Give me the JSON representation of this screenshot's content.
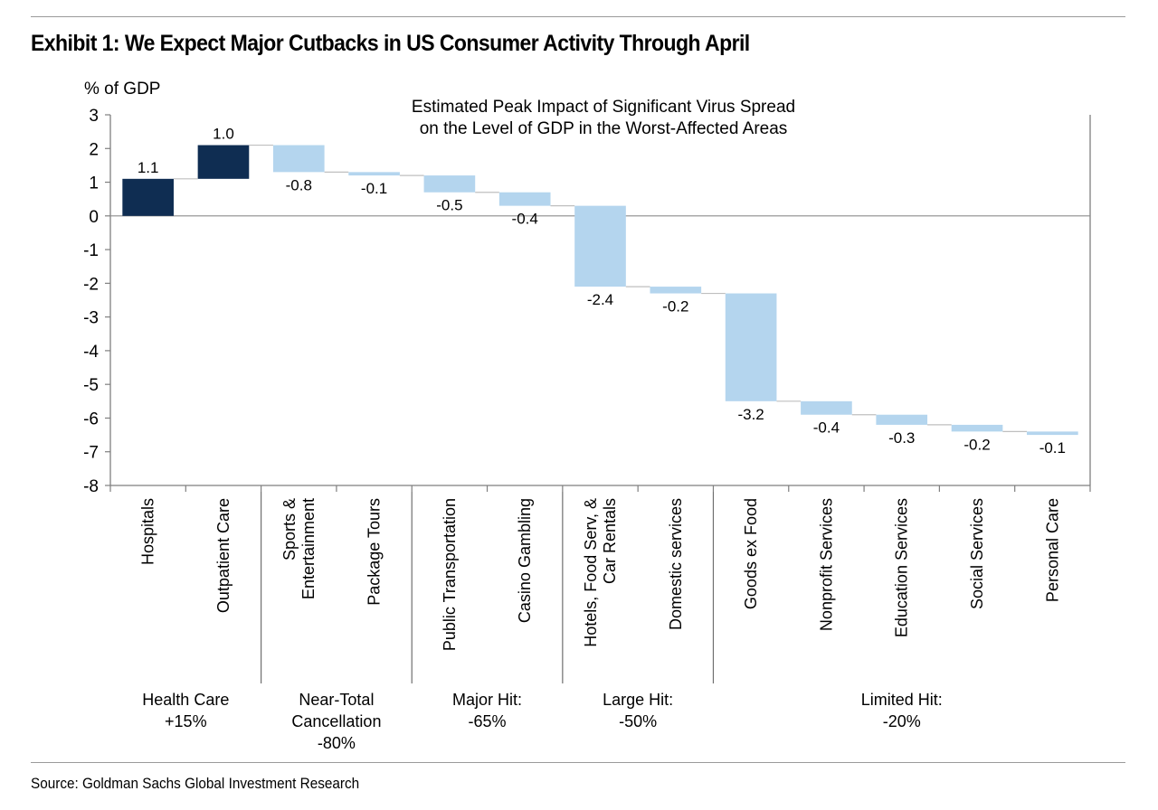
{
  "header": {
    "title": "Exhibit 1: We Expect Major Cutbacks in US Consumer Activity Through April"
  },
  "footer": {
    "source": "Source: Goldman Sachs Global Investment Research"
  },
  "chart_data": {
    "type": "bar",
    "subtype": "waterfall",
    "title": "Estimated Peak Impact of Significant Virus Spread",
    "subtitle": "on the Level of GDP in the Worst-Affected Areas",
    "ylabel": "% of GDP",
    "xlabel": "",
    "ylim": [
      -8,
      3
    ],
    "yticks": [
      3,
      2,
      1,
      0,
      -1,
      -2,
      -3,
      -4,
      -5,
      -6,
      -7,
      -8
    ],
    "grid": false,
    "zero_line": true,
    "colors": {
      "positive": "#0f2d52",
      "negative": "#b4d5ee",
      "connector": "#bfbfbf",
      "axis": "#7f7f7f"
    },
    "categories": [
      "Hospitals",
      "Outpatient Care",
      "Sports & Entertainment",
      "Package Tours",
      "Public Transportation",
      "Casino Gambling",
      "Hotels, Food Serv, & Car Rentals",
      "Domestic services",
      "Goods ex Food",
      "Nonprofit Services",
      "Education Services",
      "Social Services",
      "Personal Care"
    ],
    "category_label_lines": [
      [
        "Hospitals"
      ],
      [
        "Outpatient Care"
      ],
      [
        "Sports &",
        "Entertainment"
      ],
      [
        "Package Tours"
      ],
      [
        "Public Transportation"
      ],
      [
        "Casino Gambling"
      ],
      [
        "Hotels, Food Serv, &",
        "Car Rentals"
      ],
      [
        "Domestic services"
      ],
      [
        "Goods ex Food"
      ],
      [
        "Nonprofit Services"
      ],
      [
        "Education Services"
      ],
      [
        "Social Services"
      ],
      [
        "Personal Care"
      ]
    ],
    "values": [
      1.1,
      1.0,
      -0.8,
      -0.1,
      -0.5,
      -0.4,
      -2.4,
      -0.2,
      -3.2,
      -0.4,
      -0.3,
      -0.2,
      -0.1
    ],
    "value_labels": [
      "1.1",
      "1.0",
      "-0.8",
      "-0.1",
      "-0.5",
      "-0.4",
      "-2.4",
      "-0.2",
      "-3.2",
      "-0.4",
      "-0.3",
      "-0.2",
      "-0.1"
    ],
    "groups": [
      {
        "label_lines": [
          "Health Care",
          "+15%"
        ],
        "start": 0,
        "end": 1
      },
      {
        "label_lines": [
          "Near-Total",
          "Cancellation",
          "-80%"
        ],
        "start": 2,
        "end": 3
      },
      {
        "label_lines": [
          "Major Hit:",
          "-65%"
        ],
        "start": 4,
        "end": 5
      },
      {
        "label_lines": [
          "Large Hit:",
          "-50%"
        ],
        "start": 6,
        "end": 7
      },
      {
        "label_lines": [
          "Limited Hit:",
          "-20%"
        ],
        "start": 8,
        "end": 12
      }
    ]
  }
}
